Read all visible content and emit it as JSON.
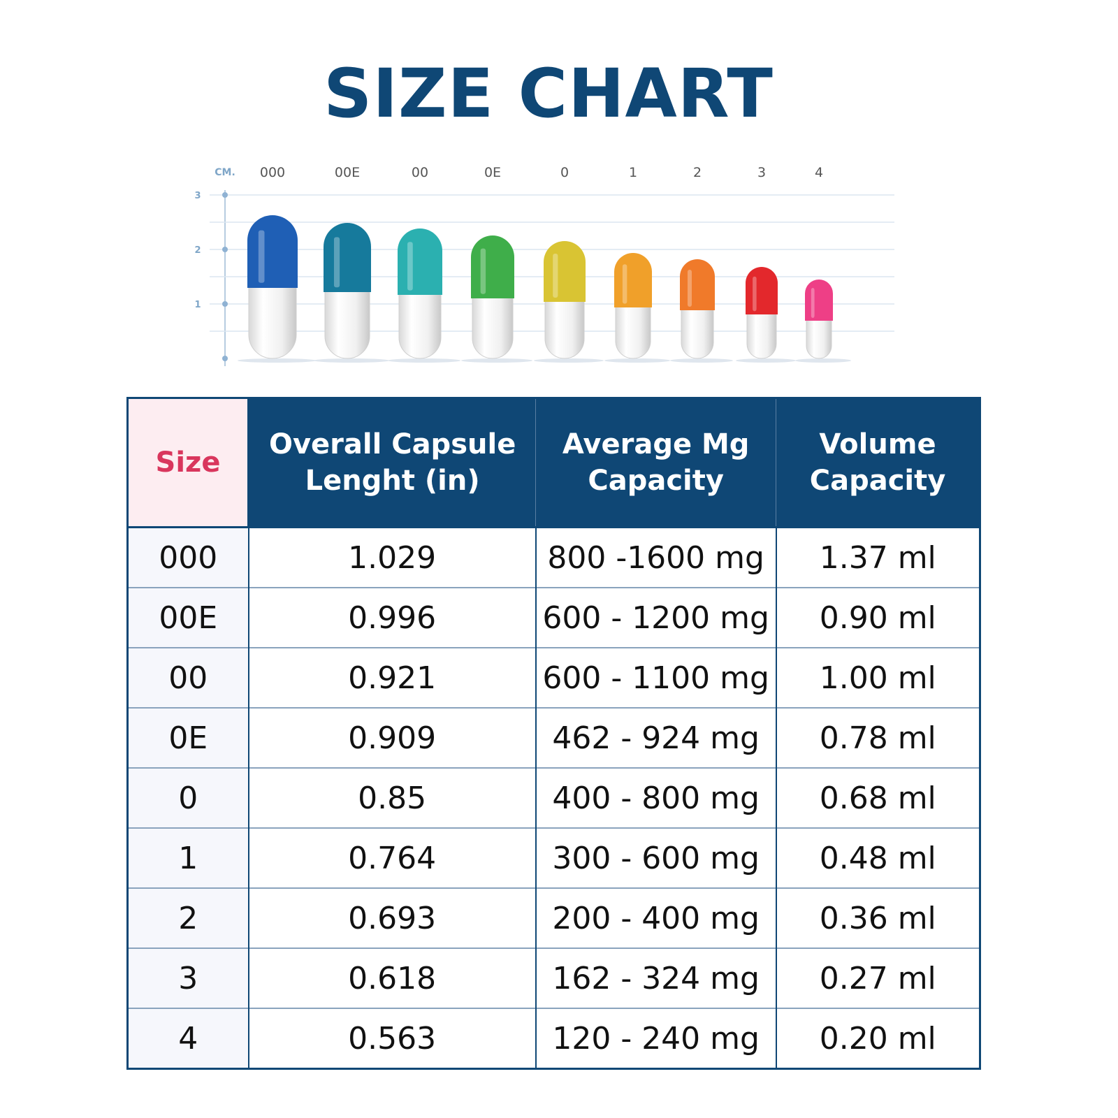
{
  "title": "SIZE CHART",
  "illustration": {
    "unit_label": "CM.",
    "y_ticks": [
      "3",
      "2",
      "1"
    ],
    "capsules": [
      {
        "size": "000",
        "color": "#1f5fb5"
      },
      {
        "size": "00E",
        "color": "#167a9c"
      },
      {
        "size": "00",
        "color": "#2bb0b0"
      },
      {
        "size": "0E",
        "color": "#3fae4a"
      },
      {
        "size": "0",
        "color": "#d9c433"
      },
      {
        "size": "1",
        "color": "#f0a02a"
      },
      {
        "size": "2",
        "color": "#f07a2a"
      },
      {
        "size": "3",
        "color": "#e3282c"
      },
      {
        "size": "4",
        "color": "#ee3f86"
      }
    ]
  },
  "table": {
    "headers": [
      "Size",
      "Overall Capsule Lenght (in)",
      "Average Mg Capacity",
      "Volume Capacity"
    ],
    "rows": [
      [
        "000",
        "1.029",
        "800 -1600 mg",
        "1.37 ml"
      ],
      [
        "00E",
        "0.996",
        "600 - 1200 mg",
        "0.90 ml"
      ],
      [
        "00",
        "0.921",
        "600 - 1100 mg",
        "1.00 ml"
      ],
      [
        "0E",
        "0.909",
        "462 - 924 mg",
        "0.78 ml"
      ],
      [
        "0",
        "0.85",
        "400 - 800 mg",
        "0.68 ml"
      ],
      [
        "1",
        "0.764",
        "300 - 600 mg",
        "0.48 ml"
      ],
      [
        "2",
        "0.693",
        "200 - 400 mg",
        "0.36 ml"
      ],
      [
        "3",
        "0.618",
        "162 - 324 mg",
        "0.27 ml"
      ],
      [
        "4",
        "0.563",
        "120 - 240 mg",
        "0.20 ml"
      ]
    ]
  }
}
